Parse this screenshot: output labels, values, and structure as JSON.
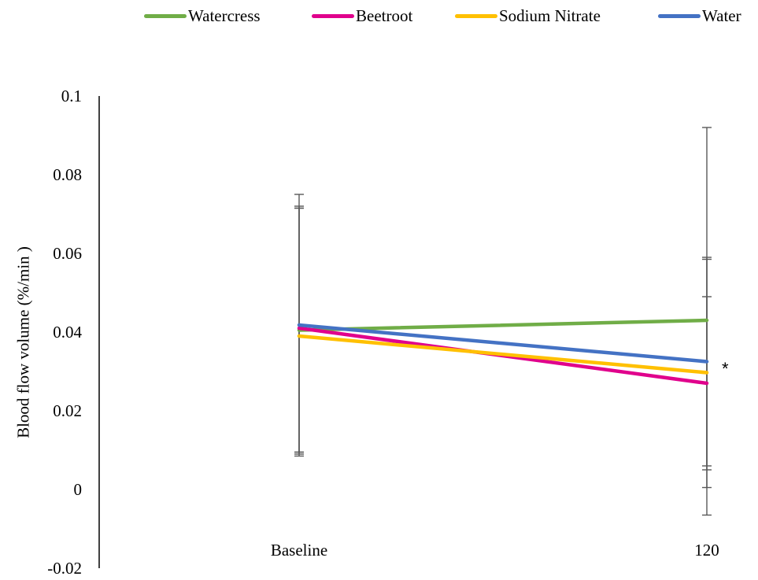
{
  "chart_data": {
    "type": "line",
    "title": "",
    "xlabel": "",
    "ylabel": "Blood flow volume (%/min )",
    "categories": [
      "Baseline",
      "120"
    ],
    "ylim": [
      -0.02,
      0.1
    ],
    "yticks": [
      "0.1",
      "0.08",
      "0.06",
      "0.04",
      "0.02",
      "0",
      "-0.02"
    ],
    "grid": false,
    "legend_position": "top",
    "series": [
      {
        "name": "Watercress",
        "color": "#70ad47",
        "values": [
          0.0405,
          0.043
        ],
        "error_low": [
          0.009,
          0.006
        ],
        "error_high": [
          0.072,
          0.049
        ]
      },
      {
        "name": "Beetroot",
        "color": "#e0008c",
        "values": [
          0.041,
          0.027
        ],
        "error_low": [
          0.0095,
          -0.0065
        ],
        "error_high": [
          0.0715,
          0.0585
        ]
      },
      {
        "name": "Sodium Nitrate",
        "color": "#ffc000",
        "values": [
          0.039,
          0.0297
        ],
        "error_low": [
          0.0095,
          0.0005
        ],
        "error_high": [
          0.0715,
          0.059
        ]
      },
      {
        "name": "Water",
        "color": "#4472c4",
        "values": [
          0.0418,
          0.0325
        ],
        "error_low": [
          0.0085,
          0.005
        ],
        "error_high": [
          0.075,
          0.092
        ]
      }
    ],
    "annotation": "*"
  }
}
